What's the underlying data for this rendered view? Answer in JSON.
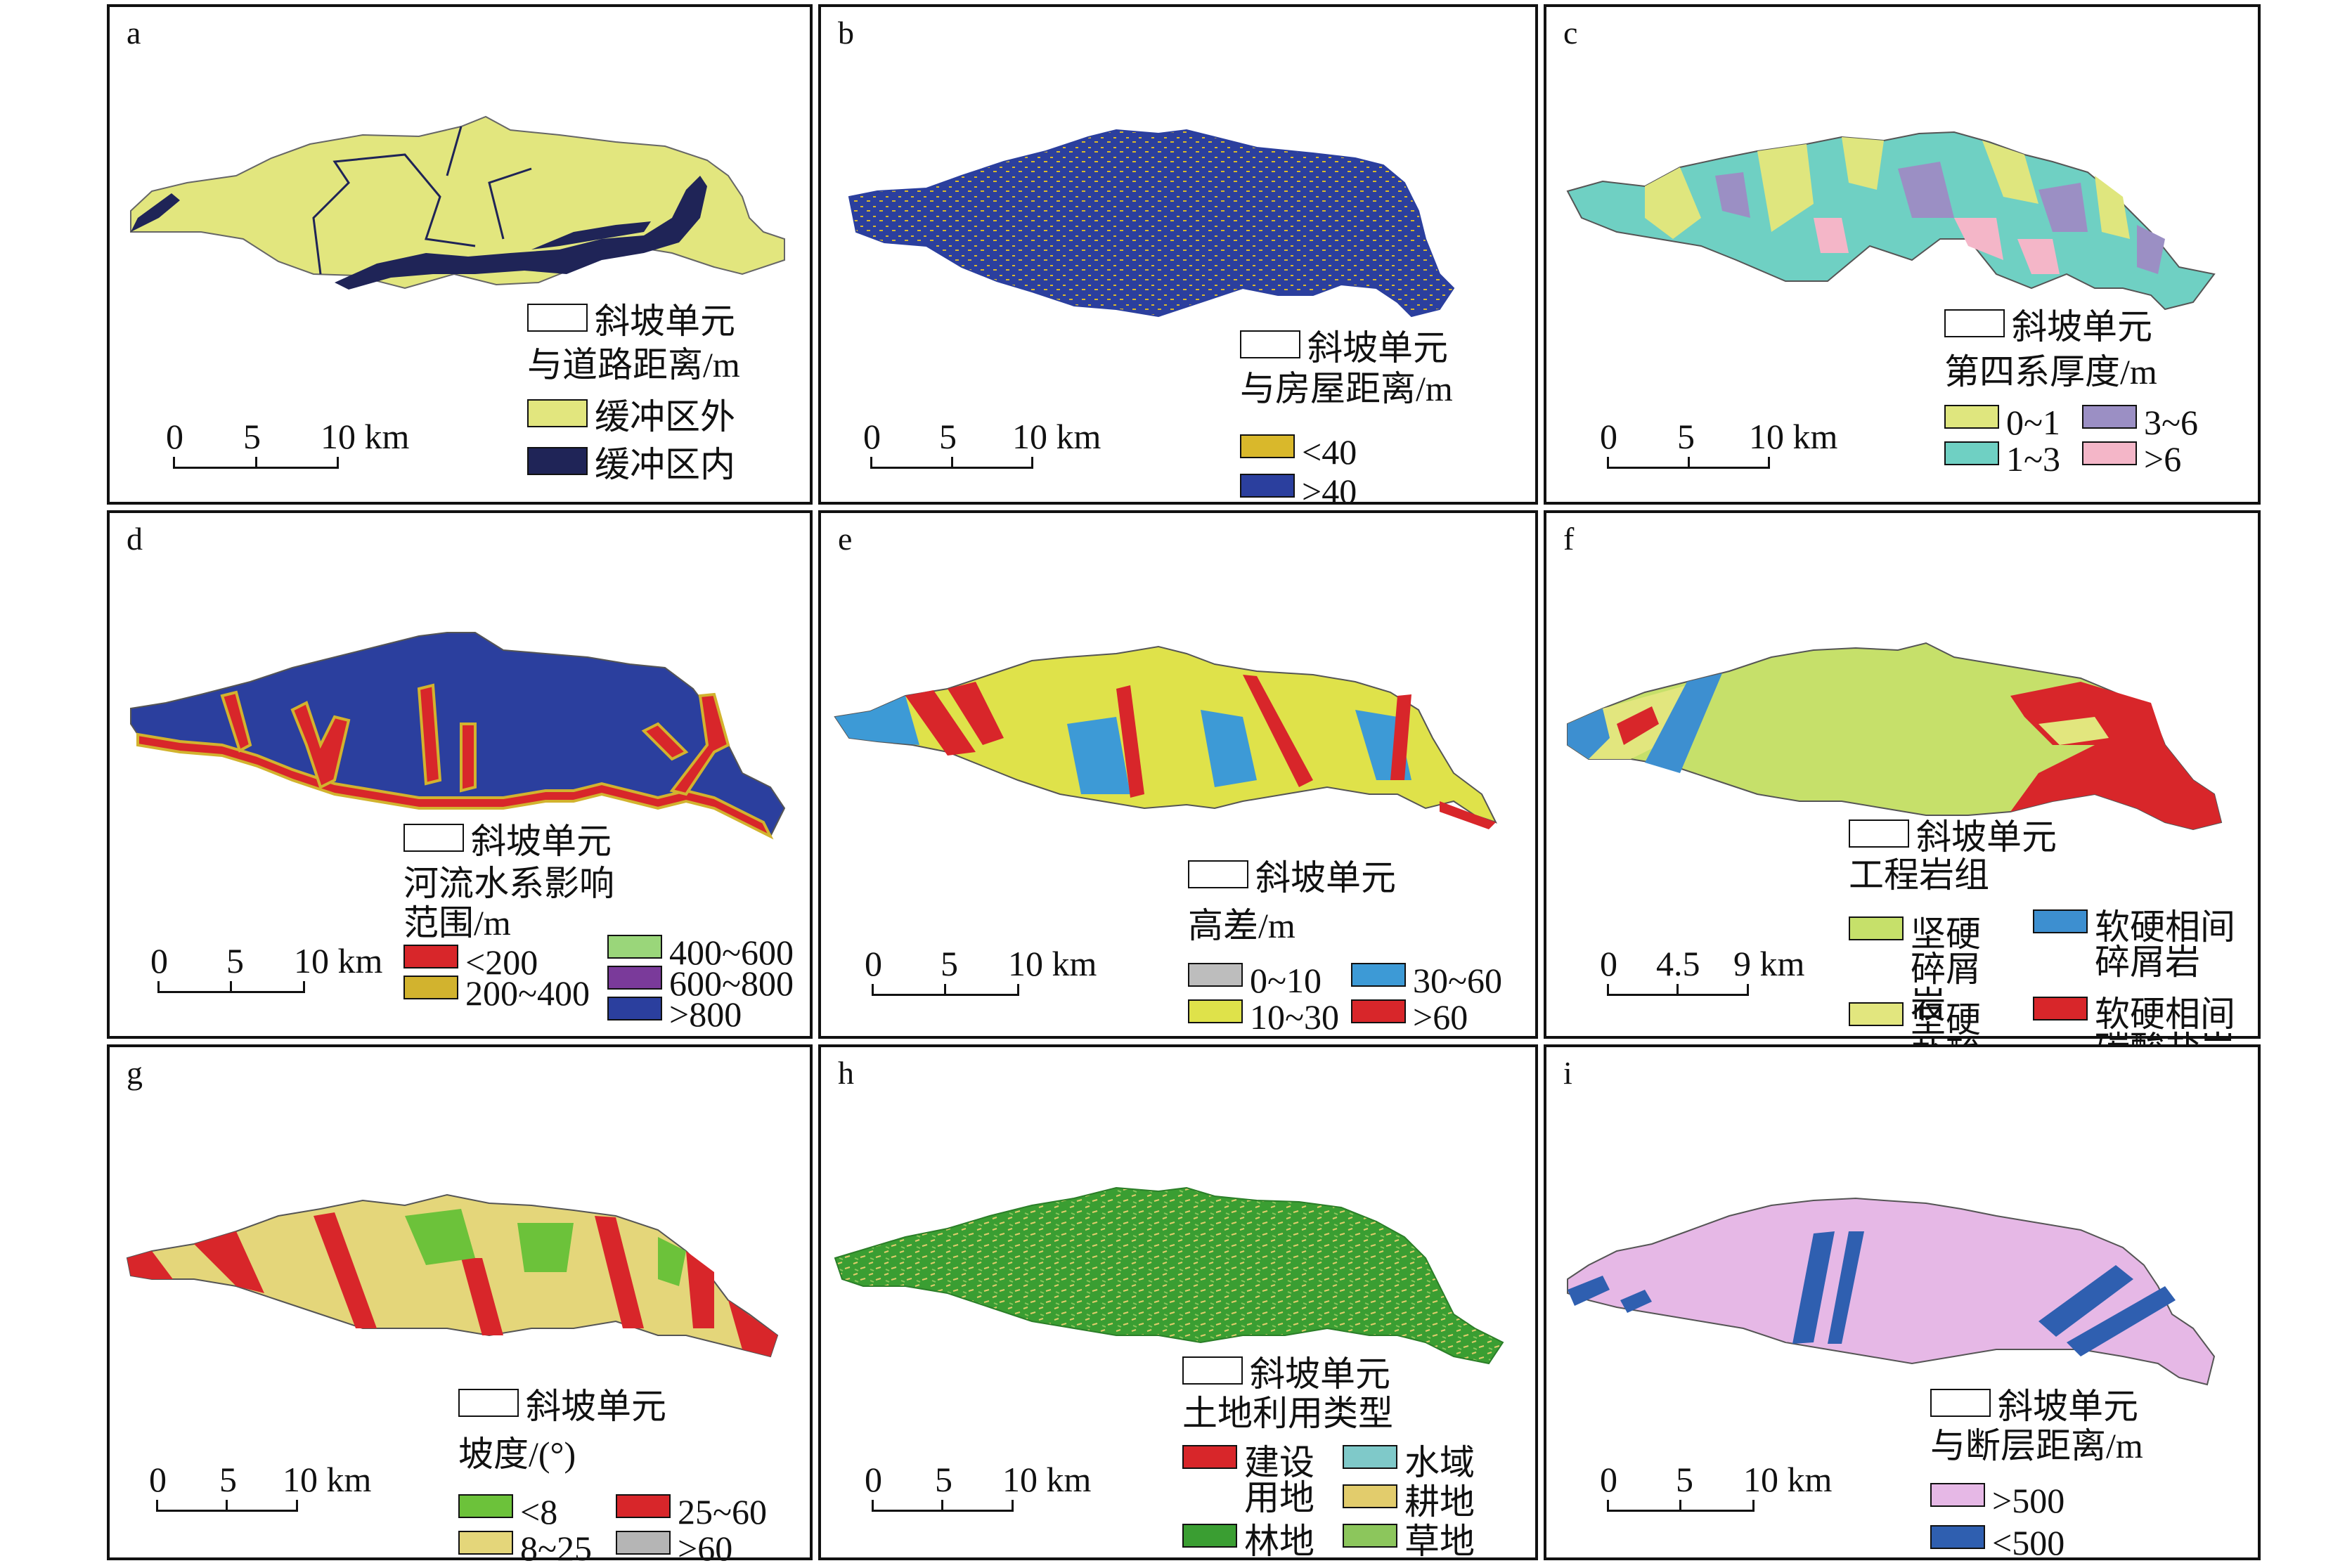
{
  "figure": {
    "panels": [
      {
        "letter": "a",
        "slope_unit_label": "斜坡单元",
        "legend_title": "与道路距离/m",
        "scale": {
          "ticks": [
            "0",
            "5",
            "10 km"
          ]
        },
        "classes": [
          {
            "label": "缓冲区外",
            "color": "#e2e67e"
          },
          {
            "label": "缓冲区内",
            "color": "#1f2457"
          }
        ]
      },
      {
        "letter": "b",
        "slope_unit_label": "斜坡单元",
        "legend_title": "与房屋距离/m",
        "scale": {
          "ticks": [
            "0",
            "5",
            "10 km"
          ]
        },
        "classes": [
          {
            "label": "<40",
            "color": "#d9b82b"
          },
          {
            "label": ">40",
            "color": "#2b3f9e"
          }
        ]
      },
      {
        "letter": "c",
        "slope_unit_label": "斜坡单元",
        "legend_title": "第四系厚度/m",
        "scale": {
          "ticks": [
            "0",
            "5",
            "10 km"
          ]
        },
        "classes": [
          {
            "label": "0~1",
            "color": "#dfe67e"
          },
          {
            "label": "3~6",
            "color": "#9b8fc4"
          },
          {
            "label": "1~3",
            "color": "#6fd0c3"
          },
          {
            "label": ">6",
            "color": "#f4b6c8"
          }
        ]
      },
      {
        "letter": "d",
        "slope_unit_label": "斜坡单元",
        "legend_title_line1": "河流水系影响",
        "legend_title_line2": "范围/m",
        "scale": {
          "ticks": [
            "0",
            "5",
            "10 km"
          ]
        },
        "classes": [
          {
            "label": "<200",
            "color": "#d8262a"
          },
          {
            "label": "400~600",
            "color": "#9ad67a"
          },
          {
            "label": "200~400",
            "color": "#d2b32e"
          },
          {
            "label": "600~800",
            "color": "#7a3a9a"
          },
          {
            "label": ">800",
            "color": "#2b3f9e"
          }
        ]
      },
      {
        "letter": "e",
        "slope_unit_label": "斜坡单元",
        "legend_title": "高差/m",
        "scale": {
          "ticks": [
            "0",
            "5",
            "10 km"
          ]
        },
        "classes": [
          {
            "label": "0~10",
            "color": "#bdbdbd"
          },
          {
            "label": "30~60",
            "color": "#3d9ad6"
          },
          {
            "label": "10~30",
            "color": "#dfe24a"
          },
          {
            "label": ">60",
            "color": "#d8262a"
          }
        ]
      },
      {
        "letter": "f",
        "slope_unit_label": "斜坡单元",
        "legend_title": "工程岩组",
        "scale": {
          "ticks": [
            "0",
            "4.5",
            "9 km"
          ]
        },
        "classes": [
          {
            "label": "坚硬碎屑岩",
            "color": "#c6e06a"
          },
          {
            "label": "软硬相间碎屑岩",
            "color": "#3d8fd0"
          },
          {
            "label": "坚硬盐酸盐岩",
            "color": "#e2e67e"
          },
          {
            "label": "软硬相间碳酸盐岩",
            "color": "#d8262a"
          }
        ]
      },
      {
        "letter": "g",
        "slope_unit_label": "斜坡单元",
        "legend_title": "坡度/(°)",
        "scale": {
          "ticks": [
            "0",
            "5",
            "10 km"
          ]
        },
        "classes": [
          {
            "label": "<8",
            "color": "#6cc23a"
          },
          {
            "label": "25~60",
            "color": "#d8262a"
          },
          {
            "label": "8~25",
            "color": "#e4d67a"
          },
          {
            "label": ">60",
            "color": "#b5b5b5"
          }
        ]
      },
      {
        "letter": "h",
        "slope_unit_label": "斜坡单元",
        "legend_title": "土地利用类型",
        "scale": {
          "ticks": [
            "0",
            "5",
            "10 km"
          ]
        },
        "classes": [
          {
            "label": "建设用地",
            "color": "#d8262a"
          },
          {
            "label": "水域",
            "color": "#7fc9c9"
          },
          {
            "label": "耕地",
            "color": "#e2cc6c"
          },
          {
            "label": "林地",
            "color": "#3a9e32"
          },
          {
            "label": "草地",
            "color": "#8cc65c"
          }
        ]
      },
      {
        "letter": "i",
        "slope_unit_label": "斜坡单元",
        "legend_title": "与断层距离/m",
        "scale": {
          "ticks": [
            "0",
            "5",
            "10 km"
          ]
        },
        "classes": [
          {
            "label": ">500",
            "color": "#e6b8e6"
          },
          {
            "label": "<500",
            "color": "#2f5fb0"
          }
        ]
      }
    ]
  }
}
